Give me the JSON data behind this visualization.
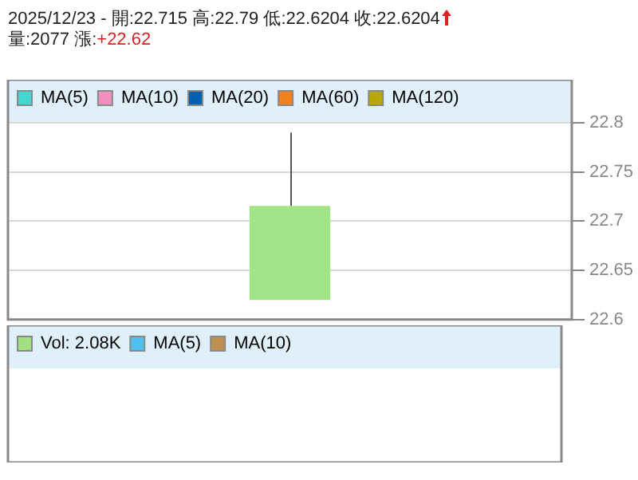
{
  "chart_data": [
    {
      "type": "candlestick",
      "title": "2025/12/23 - 開:22.715 高:22.79 低:22.6204 收:22.6204",
      "subtitle": "量:2077 漲:+22.62",
      "categories": [
        null
      ],
      "ohlc": [
        [
          22.715,
          22.79,
          22.6204,
          22.6204
        ]
      ],
      "color": "#a2e488",
      "ylim": [
        22.6,
        22.8
      ],
      "yticks": [
        22.6,
        22.65,
        22.7,
        22.75,
        22.8
      ],
      "grid": "y",
      "legend": "top left",
      "tick_labels": "y",
      "series": [
        {
          "type": "line",
          "name": "MA(5)",
          "color": "#40d8d0",
          "values": [
            null
          ]
        },
        {
          "type": "line",
          "name": "MA(10)",
          "color": "#f090c0",
          "values": [
            null
          ]
        },
        {
          "type": "line",
          "name": "MA(20)",
          "color": "#0060b0",
          "values": [
            null
          ]
        },
        {
          "type": "line",
          "name": "MA(60)",
          "color": "#f08020",
          "values": [
            null
          ]
        },
        {
          "type": "line",
          "name": "MA(120)",
          "color": "#b8a800",
          "values": [
            null
          ]
        }
      ]
    },
    {
      "type": "other",
      "legend": "top left",
      "series": [
        {
          "name": "Vol: 2.08K",
          "color": "#a0e080"
        },
        {
          "name": "MA(5)",
          "color": "#50c0f0"
        },
        {
          "name": "MA(10)",
          "color": "#c09050"
        }
      ]
    }
  ]
}
